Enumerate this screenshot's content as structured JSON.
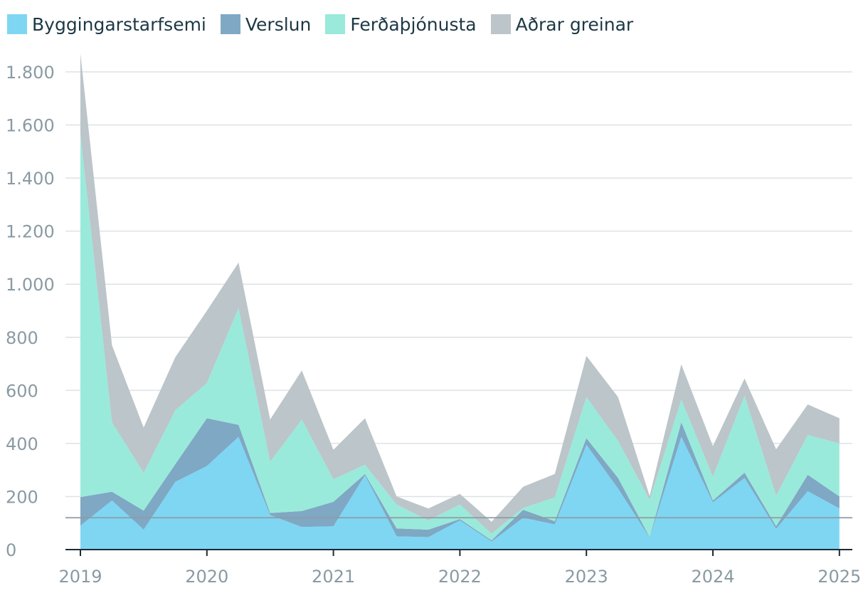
{
  "chart_data": {
    "type": "area",
    "stacked": true,
    "x": [
      "2019 Q1",
      "2019 Q2",
      "2019 Q3",
      "2019 Q4",
      "2020 Q1",
      "2020 Q2",
      "2020 Q3",
      "2020 Q4",
      "2021 Q1",
      "2021 Q2",
      "2021 Q3",
      "2021 Q4",
      "2022 Q1",
      "2022 Q2",
      "2022 Q3",
      "2022 Q4",
      "2023 Q1",
      "2023 Q2",
      "2023 Q3",
      "2023 Q4",
      "2024 Q1",
      "2024 Q2",
      "2024 Q3",
      "2024 Q4",
      "2025 Q1"
    ],
    "x_tick_labels": [
      "2019",
      "2020",
      "2021",
      "2022",
      "2023",
      "2024",
      "2025"
    ],
    "y_tick_labels": [
      "0",
      "200",
      "400",
      "600",
      "800",
      "1.000",
      "1.200",
      "1.400",
      "1.600",
      "1.800"
    ],
    "ylim": [
      0,
      1800
    ],
    "y_ticks": [
      0,
      200,
      400,
      600,
      800,
      1000,
      1200,
      1400,
      1600,
      1800
    ],
    "reference_line": 120,
    "grid": true,
    "legend_position": "top-left",
    "series": [
      {
        "name": "Byggingarstarfsemi",
        "color": "#7ed6f3",
        "values": [
          90,
          185,
          75,
          255,
          315,
          425,
          130,
          85,
          88,
          280,
          50,
          47,
          110,
          30,
          120,
          95,
          395,
          230,
          45,
          425,
          178,
          270,
          78,
          220,
          155
        ]
      },
      {
        "name": "Verslun",
        "color": "#7fa8c4",
        "values": [
          108,
          33,
          72,
          67,
          180,
          45,
          8,
          60,
          92,
          5,
          30,
          28,
          5,
          5,
          30,
          12,
          25,
          40,
          2,
          55,
          7,
          20,
          10,
          62,
          45
        ]
      },
      {
        "name": "Ferðaþjónusta",
        "color": "#99eadb",
        "values": [
          1367,
          262,
          142,
          203,
          133,
          440,
          193,
          345,
          85,
          35,
          90,
          35,
          55,
          25,
          7,
          90,
          155,
          140,
          140,
          85,
          90,
          290,
          115,
          150,
          200
        ]
      },
      {
        "name": "Aðrar greinar",
        "color": "#bcc5c9",
        "values": [
          305,
          290,
          171,
          200,
          272,
          172,
          159,
          185,
          111,
          175,
          30,
          45,
          40,
          45,
          80,
          88,
          155,
          165,
          15,
          133,
          115,
          65,
          175,
          115,
          95
        ]
      }
    ]
  }
}
